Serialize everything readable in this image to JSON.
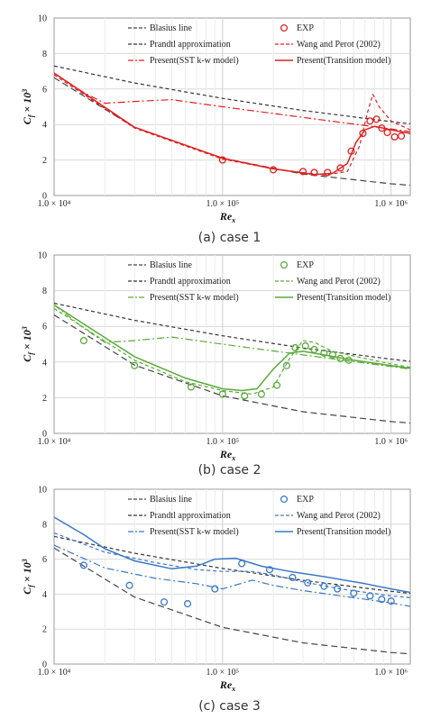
{
  "chart_data": [
    {
      "type": "line",
      "caption": "(a) case 1",
      "color": "#e02020",
      "xlabel": "Re_x",
      "ylabel": "C_f × 10^3",
      "xscale": "log",
      "xlim": [
        10000,
        1300000
      ],
      "ylim": [
        0,
        10
      ],
      "yticks": [
        "0",
        "2",
        "4",
        "6",
        "8",
        "10"
      ],
      "xticks": [
        {
          "value": 10000,
          "label": "1.0 × 10⁴"
        },
        {
          "value": 100000,
          "label": "1.0 × 10⁵"
        },
        {
          "value": 1000000,
          "label": "1.0 × 10⁶"
        }
      ],
      "legend": {
        "placement": "top",
        "entries": [
          "Blasius line",
          "EXP",
          "Prandtl approximation",
          "Wang and Perot (2002)",
          "Present(SST k-w model)",
          "Present(Transition model)"
        ]
      },
      "series": [
        {
          "name": "Blasius line",
          "style": "longdash",
          "color": "#444444",
          "x": [
            10000,
            30000,
            100000,
            300000,
            1000000,
            1300000
          ],
          "y": [
            6.64,
            3.83,
            2.1,
            1.21,
            0.66,
            0.58
          ]
        },
        {
          "name": "Prandtl approximation",
          "style": "dash",
          "color": "#333333",
          "x": [
            10000,
            30000,
            100000,
            300000,
            1000000,
            1300000
          ],
          "y": [
            7.3,
            6.34,
            5.47,
            4.79,
            4.16,
            4.04
          ]
        },
        {
          "name": "Wang and Perot (2002)",
          "style": "dash",
          "color": "#e02020",
          "x": [
            10000,
            30000,
            100000,
            200000,
            400000,
            550000,
            650000,
            720000,
            780000,
            850000,
            1000000,
            1300000
          ],
          "y": [
            6.8,
            3.8,
            2.05,
            1.5,
            1.15,
            1.35,
            2.8,
            4.6,
            5.7,
            5.0,
            4.2,
            3.7
          ]
        },
        {
          "name": "Present(SST k-w model)",
          "style": "dashdot",
          "color": "#e02020",
          "x": [
            10000,
            15000,
            20000,
            30000,
            50000,
            100000,
            300000,
            1000000,
            1300000
          ],
          "y": [
            6.9,
            5.8,
            5.2,
            5.3,
            5.4,
            5.0,
            4.4,
            3.75,
            3.6
          ]
        },
        {
          "name": "Present(Transition model)",
          "style": "solid",
          "color": "#e02020",
          "x": [
            10000,
            30000,
            100000,
            200000,
            350000,
            450000,
            550000,
            620000,
            700000,
            800000,
            1000000,
            1300000
          ],
          "y": [
            6.9,
            3.85,
            2.1,
            1.5,
            1.18,
            1.25,
            1.8,
            3.0,
            3.7,
            3.9,
            3.7,
            3.5
          ]
        },
        {
          "name": "EXP",
          "style": "markers",
          "color": "#e02020",
          "x": [
            100000,
            200000,
            300000,
            350000,
            420000,
            500000,
            580000,
            680000,
            750000,
            820000,
            880000,
            950000,
            1050000,
            1150000
          ],
          "y": [
            2.0,
            1.45,
            1.35,
            1.3,
            1.3,
            1.55,
            2.5,
            3.5,
            4.2,
            4.3,
            3.8,
            3.55,
            3.3,
            3.35
          ]
        }
      ]
    },
    {
      "type": "line",
      "caption": "(b) case 2",
      "color": "#5aaa3a",
      "xlabel": "Re_x",
      "ylabel": "C_f × 10^3",
      "xscale": "log",
      "xlim": [
        10000,
        1300000
      ],
      "ylim": [
        0,
        10
      ],
      "yticks": [
        "0",
        "2",
        "4",
        "6",
        "8",
        "10"
      ],
      "xticks": [
        {
          "value": 10000,
          "label": "1.0 × 10⁴"
        },
        {
          "value": 100000,
          "label": "1.0 × 10⁵"
        },
        {
          "value": 1000000,
          "label": "1.0 × 10⁶"
        }
      ],
      "legend": {
        "placement": "top",
        "entries": [
          "Blasius line",
          "EXP",
          "Prandtl approximation",
          "Wang and Perot (2002)",
          "Present(SST k-w model)",
          "Present(Transition model)"
        ]
      },
      "series": [
        {
          "name": "Blasius line",
          "style": "longdash",
          "color": "#444444",
          "x": [
            10000,
            30000,
            100000,
            300000,
            1000000,
            1300000
          ],
          "y": [
            6.64,
            3.83,
            2.1,
            1.21,
            0.66,
            0.58
          ]
        },
        {
          "name": "Prandtl approximation",
          "style": "dash",
          "color": "#333333",
          "x": [
            10000,
            30000,
            100000,
            300000,
            1000000,
            1300000
          ],
          "y": [
            7.3,
            6.34,
            5.47,
            4.79,
            4.16,
            4.04
          ]
        },
        {
          "name": "Wang and Perot (2002)",
          "style": "dash",
          "color": "#5aaa3a",
          "x": [
            10000,
            30000,
            60000,
            100000,
            150000,
            200000,
            250000,
            300000,
            350000,
            450000,
            700000,
            1000000,
            1300000
          ],
          "y": [
            7.0,
            4.1,
            2.9,
            2.4,
            2.2,
            2.6,
            4.2,
            5.2,
            5.1,
            4.6,
            4.2,
            3.9,
            3.7
          ]
        },
        {
          "name": "Present(SST k-w model)",
          "style": "dashdot",
          "color": "#5aaa3a",
          "x": [
            10000,
            15000,
            20000,
            30000,
            50000,
            100000,
            300000,
            1000000,
            1300000
          ],
          "y": [
            7.2,
            5.9,
            5.1,
            5.2,
            5.4,
            5.0,
            4.4,
            3.75,
            3.6
          ]
        },
        {
          "name": "Present(Transition model)",
          "style": "solid",
          "color": "#5aaa3a",
          "x": [
            10000,
            30000,
            60000,
            100000,
            130000,
            160000,
            200000,
            250000,
            300000,
            400000,
            600000,
            1000000,
            1300000
          ],
          "y": [
            7.2,
            4.3,
            3.1,
            2.5,
            2.4,
            2.5,
            3.6,
            4.5,
            4.6,
            4.4,
            4.1,
            3.8,
            3.65
          ]
        },
        {
          "name": "EXP",
          "style": "markers",
          "color": "#5aaa3a",
          "x": [
            15000,
            30000,
            65000,
            100000,
            135000,
            170000,
            210000,
            240000,
            270000,
            310000,
            350000,
            400000,
            450000,
            500000,
            560000
          ],
          "y": [
            5.2,
            3.8,
            2.6,
            2.2,
            2.1,
            2.2,
            2.7,
            3.8,
            4.8,
            4.9,
            4.7,
            4.5,
            4.4,
            4.2,
            4.1
          ]
        }
      ]
    },
    {
      "type": "line",
      "caption": "(c) case 3",
      "color": "#3a78c8",
      "xlabel": "Re_x",
      "ylabel": "C_f × 10^3",
      "xscale": "log",
      "xlim": [
        10000,
        1300000
      ],
      "ylim": [
        0,
        10
      ],
      "yticks": [
        "0",
        "2",
        "4",
        "6",
        "8",
        "10"
      ],
      "xticks": [
        {
          "value": 10000,
          "label": "1.0 × 10⁴"
        },
        {
          "value": 100000,
          "label": "1.0 × 10⁵"
        },
        {
          "value": 1000000,
          "label": "1.0 × 10⁶"
        }
      ],
      "legend": {
        "placement": "top",
        "entries": [
          "Blasius line",
          "EXP",
          "Prandtl approximation",
          "Wang and Perot (2002)",
          "Present(SST k-w model)",
          "Present(Transition model)"
        ]
      },
      "series": [
        {
          "name": "Blasius line",
          "style": "longdash",
          "color": "#444444",
          "x": [
            10000,
            30000,
            100000,
            300000,
            1000000,
            1300000
          ],
          "y": [
            6.64,
            3.83,
            2.1,
            1.21,
            0.66,
            0.58
          ]
        },
        {
          "name": "Prandtl approximation",
          "style": "dash",
          "color": "#333333",
          "x": [
            10000,
            30000,
            100000,
            300000,
            1000000,
            1300000
          ],
          "y": [
            7.3,
            6.34,
            5.47,
            4.79,
            4.16,
            4.04
          ]
        },
        {
          "name": "Wang and Perot (2002)",
          "style": "dash",
          "color": "#3a78c8",
          "x": [
            10000,
            20000,
            40000,
            70000,
            100000,
            150000,
            200000,
            300000,
            500000,
            1000000,
            1300000
          ],
          "y": [
            7.5,
            6.4,
            5.8,
            5.4,
            5.3,
            5.3,
            5.1,
            4.7,
            4.3,
            3.9,
            3.8
          ]
        },
        {
          "name": "Present(SST k-w model)",
          "style": "dashdot",
          "color": "#3a78c8",
          "x": [
            10000,
            20000,
            40000,
            70000,
            100000,
            150000,
            200000,
            300000,
            500000,
            1000000,
            1300000
          ],
          "y": [
            6.8,
            5.5,
            4.9,
            4.6,
            4.3,
            4.8,
            4.5,
            4.2,
            3.9,
            3.5,
            3.3
          ]
        },
        {
          "name": "Present(Transition model)",
          "style": "solid",
          "color": "#3a78c8",
          "x": [
            10000,
            15000,
            20000,
            30000,
            50000,
            70000,
            90000,
            120000,
            170000,
            250000,
            400000,
            700000,
            1000000,
            1300000
          ],
          "y": [
            8.4,
            7.4,
            6.6,
            5.9,
            5.45,
            5.6,
            6.0,
            6.05,
            5.6,
            5.3,
            5.0,
            4.6,
            4.3,
            4.1
          ]
        },
        {
          "name": "EXP",
          "style": "markers",
          "color": "#3a78c8",
          "x": [
            15000,
            28000,
            45000,
            62000,
            90000,
            130000,
            190000,
            260000,
            320000,
            400000,
            480000,
            600000,
            750000,
            880000,
            1000000
          ],
          "y": [
            5.65,
            4.5,
            3.55,
            3.45,
            4.3,
            5.75,
            5.4,
            4.95,
            4.65,
            4.45,
            4.3,
            4.05,
            3.9,
            3.7,
            3.6
          ]
        }
      ]
    }
  ]
}
